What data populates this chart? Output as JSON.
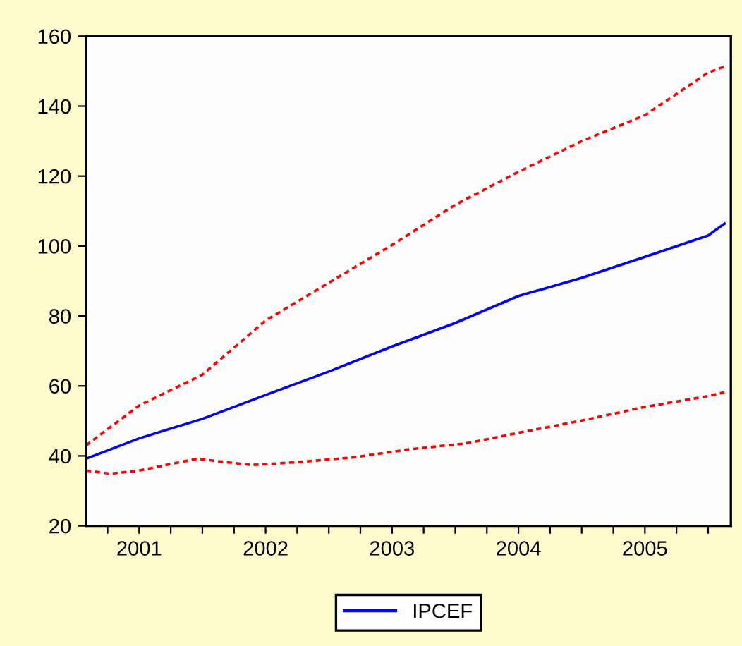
{
  "chart_data": {
    "type": "line",
    "xlim": [
      2001.08,
      2006.18
    ],
    "xticks": [
      {
        "value": 2001.25,
        "label": null
      },
      {
        "value": 2001.5,
        "label": "2001"
      },
      {
        "value": 2001.75,
        "label": null
      },
      {
        "value": 2002,
        "label": null
      },
      {
        "value": 2002.25,
        "label": null
      },
      {
        "value": 2002.5,
        "label": "2002"
      },
      {
        "value": 2002.75,
        "label": null
      },
      {
        "value": 2003,
        "label": null
      },
      {
        "value": 2003.25,
        "label": null
      },
      {
        "value": 2003.5,
        "label": "2003"
      },
      {
        "value": 2003.75,
        "label": null
      },
      {
        "value": 2004,
        "label": null
      },
      {
        "value": 2004.25,
        "label": null
      },
      {
        "value": 2004.5,
        "label": "2004"
      },
      {
        "value": 2004.75,
        "label": null
      },
      {
        "value": 2005,
        "label": null
      },
      {
        "value": 2005.25,
        "label": null
      },
      {
        "value": 2005.5,
        "label": "2005"
      },
      {
        "value": 2005.75,
        "label": null
      },
      {
        "value": 2006,
        "label": null
      }
    ],
    "ylim": [
      20,
      160
    ],
    "yticks": [
      20,
      40,
      60,
      80,
      100,
      120,
      140,
      160
    ],
    "grid": false,
    "legend": "bottom",
    "series": [
      {
        "name": "IPCEF",
        "color": "#0000ff",
        "line_style": "solid",
        "x": [
          2001.08,
          2001.5,
          2002,
          2002.5,
          2003,
          2003.5,
          2004,
          2004.5,
          2005,
          2005.5,
          2006,
          2006.13
        ],
        "values": [
          39.2,
          45,
          50.6,
          57.4,
          64.1,
          71.3,
          78,
          85.7,
          90.9,
          96.9,
          103,
          106.4
        ]
      },
      {
        "color": "#ff0000",
        "line_style": "dashed",
        "x": [
          2001.08,
          2001.5,
          2002,
          2002.5,
          2003,
          2003.5,
          2004,
          2004.5,
          2005,
          2005.5,
          2006,
          2006.13
        ],
        "values": [
          43,
          54.4,
          63.2,
          78.7,
          89.5,
          100.3,
          111.8,
          121.2,
          130,
          137.4,
          149.6,
          151.3
        ]
      },
      {
        "color": "#ff0000",
        "line_style": "dashed",
        "x": [
          2001.08,
          2001.27,
          2001.5,
          2001.74,
          2001.96,
          2002.19,
          2002.39,
          2002.75,
          2003.2,
          2003.64,
          2004.09,
          2004.5,
          2005,
          2005.5,
          2006,
          2006.13
        ],
        "values": [
          35.8,
          34.9,
          35.8,
          37.6,
          39.2,
          38.2,
          37.4,
          38.2,
          39.6,
          41.9,
          43.6,
          46.6,
          50.1,
          54,
          57.1,
          58.2
        ]
      }
    ]
  }
}
